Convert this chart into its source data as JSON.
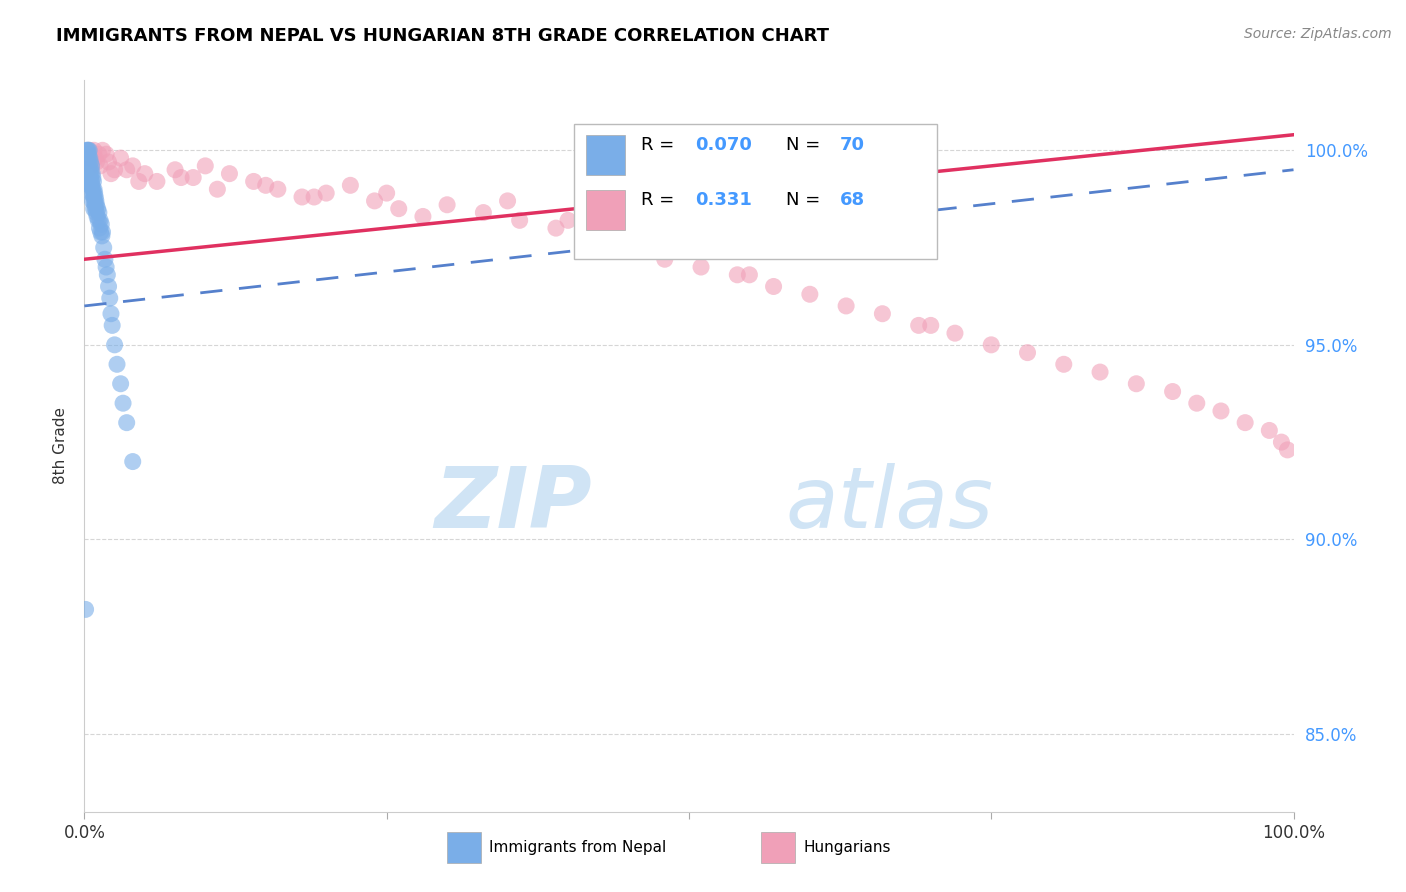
{
  "title": "IMMIGRANTS FROM NEPAL VS HUNGARIAN 8TH GRADE CORRELATION CHART",
  "source_text": "Source: ZipAtlas.com",
  "ylabel": "8th Grade",
  "y_ticks": [
    85.0,
    90.0,
    95.0,
    100.0
  ],
  "y_tick_labels": [
    "85.0%",
    "90.0%",
    "95.0%",
    "100.0%"
  ],
  "xlim": [
    0.0,
    100.0
  ],
  "ylim": [
    83.0,
    101.8
  ],
  "legend_r_blue": "R = 0.070",
  "legend_n_blue": "N = 70",
  "legend_r_pink": "R = 0.331",
  "legend_n_pink": "N = 68",
  "blue_color": "#7aaee8",
  "pink_color": "#f0a0b8",
  "trend_blue_color": "#5580cc",
  "trend_pink_color": "#e03060",
  "watermark_zip": "ZIP",
  "watermark_atlas": "atlas",
  "watermark_color": "#d0e4f5",
  "nepal_x": [
    0.1,
    0.15,
    0.18,
    0.2,
    0.22,
    0.25,
    0.28,
    0.3,
    0.32,
    0.35,
    0.38,
    0.4,
    0.42,
    0.45,
    0.48,
    0.5,
    0.52,
    0.55,
    0.58,
    0.6,
    0.62,
    0.65,
    0.68,
    0.7,
    0.72,
    0.75,
    0.78,
    0.8,
    0.82,
    0.85,
    0.88,
    0.9,
    0.92,
    0.95,
    0.98,
    1.0,
    1.05,
    1.1,
    1.15,
    1.2,
    1.25,
    1.3,
    1.35,
    1.4,
    1.45,
    1.5,
    1.6,
    1.7,
    1.8,
    1.9,
    2.0,
    2.1,
    2.2,
    2.3,
    2.5,
    2.7,
    3.0,
    3.2,
    3.5,
    4.0,
    0.05,
    0.08,
    0.12,
    0.16,
    0.24,
    0.33,
    0.44,
    0.56,
    0.66,
    0.77
  ],
  "nepal_y": [
    88.2,
    99.5,
    100.0,
    99.8,
    99.9,
    100.0,
    99.7,
    100.0,
    99.8,
    99.9,
    99.5,
    100.0,
    99.6,
    99.8,
    99.4,
    99.7,
    99.3,
    99.5,
    99.2,
    99.6,
    99.1,
    99.4,
    99.0,
    99.3,
    98.9,
    99.2,
    98.8,
    99.0,
    98.7,
    98.9,
    98.6,
    98.8,
    98.5,
    98.7,
    98.4,
    98.6,
    98.3,
    98.5,
    98.2,
    98.4,
    98.0,
    98.2,
    97.9,
    98.1,
    97.8,
    97.9,
    97.5,
    97.2,
    97.0,
    96.8,
    96.5,
    96.2,
    95.8,
    95.5,
    95.0,
    94.5,
    94.0,
    93.5,
    93.0,
    92.0,
    99.2,
    99.6,
    99.8,
    99.7,
    99.5,
    99.3,
    99.1,
    98.9,
    98.7,
    98.5
  ],
  "hungarian_x": [
    0.3,
    0.5,
    0.8,
    1.2,
    1.5,
    2.0,
    2.5,
    3.0,
    4.0,
    5.0,
    6.0,
    7.5,
    9.0,
    10.0,
    12.0,
    14.0,
    16.0,
    18.0,
    20.0,
    22.0,
    24.0,
    26.0,
    28.0,
    30.0,
    33.0,
    36.0,
    39.0,
    42.0,
    45.0,
    48.0,
    51.0,
    54.0,
    57.0,
    60.0,
    63.0,
    66.0,
    69.0,
    72.0,
    75.0,
    78.0,
    81.0,
    84.0,
    87.0,
    90.0,
    92.0,
    94.0,
    96.0,
    98.0,
    99.0,
    99.5,
    0.6,
    1.0,
    1.8,
    3.5,
    8.0,
    15.0,
    25.0,
    35.0,
    55.0,
    70.0,
    0.4,
    0.9,
    1.3,
    2.2,
    4.5,
    11.0,
    19.0,
    40.0
  ],
  "hungarian_y": [
    99.5,
    99.8,
    100.0,
    99.9,
    100.0,
    99.7,
    99.5,
    99.8,
    99.6,
    99.4,
    99.2,
    99.5,
    99.3,
    99.6,
    99.4,
    99.2,
    99.0,
    98.8,
    98.9,
    99.1,
    98.7,
    98.5,
    98.3,
    98.6,
    98.4,
    98.2,
    98.0,
    97.8,
    97.5,
    97.2,
    97.0,
    96.8,
    96.5,
    96.3,
    96.0,
    95.8,
    95.5,
    95.3,
    95.0,
    94.8,
    94.5,
    94.3,
    94.0,
    93.8,
    93.5,
    93.3,
    93.0,
    92.8,
    92.5,
    92.3,
    99.6,
    99.7,
    99.9,
    99.5,
    99.3,
    99.1,
    98.9,
    98.7,
    96.8,
    95.5,
    100.0,
    99.8,
    99.6,
    99.4,
    99.2,
    99.0,
    98.8,
    98.2
  ]
}
